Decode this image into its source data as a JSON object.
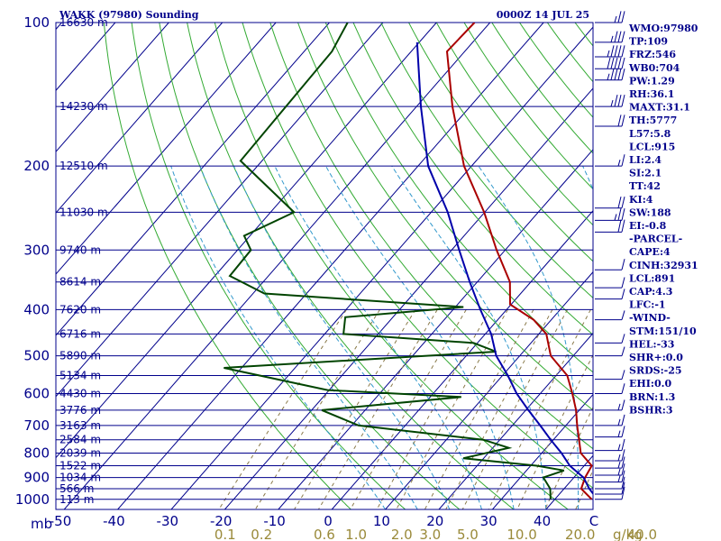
{
  "header": {
    "title": "WAKK (97980) Sounding",
    "time": "0000Z 14 JUL 25"
  },
  "chart_data": {
    "type": "line",
    "plot_kind": "skew-T log-P",
    "pressure_ticks": [
      "100",
      "200",
      "300",
      "400",
      "500",
      "600",
      "700",
      "800",
      "900",
      "1000"
    ],
    "pressure_levels": [
      100,
      200,
      300,
      400,
      500,
      600,
      700,
      800,
      900,
      1000
    ],
    "pressure_unit_label": "mb",
    "temp_ticks": [
      "-50",
      "-40",
      "-30",
      "-20",
      "-10",
      "0",
      "10",
      "20",
      "30",
      "40",
      "C"
    ],
    "mixing_ratio_label": "g/kg",
    "mixing_ratio_ticks": [
      {
        "t": "0.1",
        "v": 0.1
      },
      {
        "t": "0.2",
        "v": 0.2
      },
      {
        "t": "0.6",
        "v": 0.6
      },
      {
        "t": "1.0",
        "v": 1.0
      },
      {
        "t": "2.0",
        "v": 2.0
      },
      {
        "t": "3.0",
        "v": 3.0
      },
      {
        "t": "5.0",
        "v": 5.0
      },
      {
        "t": "10.0",
        "v": 10.0
      },
      {
        "t": "20.0",
        "v": 20.0
      },
      {
        "t": "40.0",
        "v": 40.0
      }
    ],
    "height_labels": [
      {
        "t": "16630 m",
        "p": 100
      },
      {
        "t": "14230 m",
        "p": 150
      },
      {
        "t": "12510 m",
        "p": 200
      },
      {
        "t": "11030 m",
        "p": 250
      },
      {
        "t": "9740 m",
        "p": 300
      },
      {
        "t": "8614 m",
        "p": 350
      },
      {
        "t": "7620 m",
        "p": 400
      },
      {
        "t": "6716 m",
        "p": 450
      },
      {
        "t": "5890 m",
        "p": 500
      },
      {
        "t": "5134 m",
        "p": 550
      },
      {
        "t": "4430 m",
        "p": 600
      },
      {
        "t": "3776 m",
        "p": 650
      },
      {
        "t": "3163 m",
        "p": 700
      },
      {
        "t": "2584 m",
        "p": 750
      },
      {
        "t": "2039 m",
        "p": 800
      },
      {
        "t": "1522 m",
        "p": 850
      },
      {
        "t": "1034 m",
        "p": 900
      },
      {
        "t": "566 m",
        "p": 950
      },
      {
        "t": "113 m",
        "p": 1000
      }
    ],
    "series": [
      {
        "role": "temperature",
        "color": "#aa0000",
        "points": [
          [
            100,
            -72.9
          ],
          [
            115,
            -73.3
          ],
          [
            150,
            -63.3
          ],
          [
            200,
            -51.4
          ],
          [
            250,
            -40.1
          ],
          [
            300,
            -31.6
          ],
          [
            350,
            -23.9
          ],
          [
            390,
            -20.2
          ],
          [
            420,
            -13.3
          ],
          [
            450,
            -8.6
          ],
          [
            500,
            -4.2
          ],
          [
            550,
            2.1
          ],
          [
            600,
            6.0
          ],
          [
            650,
            9.4
          ],
          [
            700,
            12.1
          ],
          [
            750,
            14.8
          ],
          [
            800,
            17.3
          ],
          [
            850,
            21.4
          ],
          [
            900,
            22.1
          ],
          [
            950,
            23.2
          ],
          [
            1000,
            26.9
          ]
        ]
      },
      {
        "role": "dewpoint",
        "color": "#004400",
        "points": [
          [
            100,
            -96.6
          ],
          [
            115,
            -94.8
          ],
          [
            150,
            -94.4
          ],
          [
            195,
            -94.0
          ],
          [
            250,
            -75.6
          ],
          [
            280,
            -81.1
          ],
          [
            300,
            -77.5
          ],
          [
            340,
            -77.2
          ],
          [
            370,
            -67.9
          ],
          [
            395,
            -28.5
          ],
          [
            415,
            -48.9
          ],
          [
            450,
            -46.5
          ],
          [
            470,
            -20.7
          ],
          [
            490,
            -15.1
          ],
          [
            530,
            -63.3
          ],
          [
            590,
            -40.3
          ],
          [
            610,
            -14.2
          ],
          [
            650,
            -38.1
          ],
          [
            700,
            -28.7
          ],
          [
            750,
            -3.1
          ],
          [
            780,
            3.0
          ],
          [
            820,
            -3.8
          ],
          [
            850,
            11.1
          ],
          [
            870,
            17.0
          ],
          [
            900,
            14.3
          ],
          [
            950,
            17.4
          ],
          [
            1000,
            19.2
          ]
        ]
      },
      {
        "role": "parcel",
        "color": "#0000aa",
        "points": [
          [
            110,
            -80.4
          ],
          [
            150,
            -69.2
          ],
          [
            200,
            -58.1
          ],
          [
            250,
            -46.9
          ],
          [
            300,
            -38.6
          ],
          [
            350,
            -31.4
          ],
          [
            400,
            -24.9
          ],
          [
            450,
            -18.9
          ],
          [
            500,
            -14.4
          ],
          [
            550,
            -9.0
          ],
          [
            600,
            -4.4
          ],
          [
            650,
            0.5
          ],
          [
            700,
            5.2
          ],
          [
            750,
            9.5
          ],
          [
            800,
            13.7
          ],
          [
            850,
            17.3
          ],
          [
            900,
            21.8
          ],
          [
            950,
            24.7
          ],
          [
            1000,
            28.0
          ]
        ]
      }
    ],
    "wind_barbs": [
      {
        "p": 100,
        "dir": 250,
        "spd": 25
      },
      {
        "p": 110,
        "dir": 245,
        "spd": 35
      },
      {
        "p": 118,
        "dir": 250,
        "spd": 45
      },
      {
        "p": 125,
        "dir": 245,
        "spd": 50
      },
      {
        "p": 132,
        "dir": 250,
        "spd": 45
      },
      {
        "p": 150,
        "dir": 255,
        "spd": 35
      },
      {
        "p": 165,
        "dir": 250,
        "spd": 20
      },
      {
        "p": 200,
        "dir": 255,
        "spd": 15
      },
      {
        "p": 245,
        "dir": 250,
        "spd": 20
      },
      {
        "p": 260,
        "dir": 260,
        "spd": 25
      },
      {
        "p": 275,
        "dir": 265,
        "spd": 20
      },
      {
        "p": 330,
        "dir": 240,
        "spd": 10
      },
      {
        "p": 360,
        "dir": 235,
        "spd": 10
      },
      {
        "p": 380,
        "dir": 225,
        "spd": 10
      },
      {
        "p": 420,
        "dir": 195,
        "spd": 10
      },
      {
        "p": 470,
        "dir": 180,
        "spd": 10
      },
      {
        "p": 500,
        "dir": 170,
        "spd": 10
      },
      {
        "p": 560,
        "dir": 160,
        "spd": 10
      },
      {
        "p": 600,
        "dir": 135,
        "spd": 10
      },
      {
        "p": 650,
        "dir": 130,
        "spd": 15
      },
      {
        "p": 700,
        "dir": 120,
        "spd": 15
      },
      {
        "p": 740,
        "dir": 115,
        "spd": 15
      },
      {
        "p": 790,
        "dir": 110,
        "spd": 15
      },
      {
        "p": 830,
        "dir": 110,
        "spd": 15
      },
      {
        "p": 860,
        "dir": 110,
        "spd": 15
      },
      {
        "p": 890,
        "dir": 105,
        "spd": 15
      },
      {
        "p": 920,
        "dir": 105,
        "spd": 15
      },
      {
        "p": 950,
        "dir": 100,
        "spd": 10
      },
      {
        "p": 975,
        "dir": 100,
        "spd": 10
      },
      {
        "p": 1000,
        "dir": 90,
        "spd": 10
      }
    ],
    "indices": [
      "WMO:97980",
      "TP:109",
      "FRZ:546",
      "WB0:704",
      "PW:1.29",
      "RH:36.1",
      "MAXT:31.1",
      "TH:5777",
      "L57:5.8",
      "LCL:915",
      "LI:2.4",
      "SI:2.1",
      "TT:42",
      "KI:4",
      "SW:188",
      "EI:-0.8",
      "-PARCEL-",
      "CAPE:4",
      "CINH:32931",
      "LCL:891",
      "CAP:4.3",
      "LFC:-1",
      "-WIND-",
      "STM:151/10",
      "HEL:-33",
      "SHR+:0.0",
      "SRDS:-25",
      "EHI:0.0",
      "BRN:1.3",
      "BSHR:3"
    ],
    "colors": {
      "isobar": "#00008b",
      "isotherm": "#00008b",
      "dry_adiabat": "#33aa33",
      "moist_adiabat": "#3399cc",
      "mixing_ratio": "#8a7a4a",
      "text": "#00008b"
    }
  }
}
